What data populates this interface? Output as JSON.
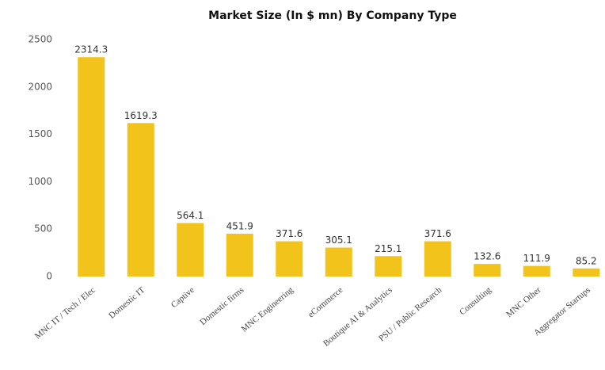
{
  "chart_data": {
    "type": "bar",
    "title": "Market Size (In $ mn) By Company Type",
    "categories": [
      "MNC IT / Tech / Elec",
      "Domestic IT",
      "Captive",
      "Domestic firms",
      "MNC Engineering",
      "eCommerce",
      "Boutique AI & Analytics",
      "PSU / Public Research",
      "Consulting",
      "MNC Other",
      "Aggregator Startups"
    ],
    "values": [
      2314.3,
      1619.3,
      564.1,
      451.9,
      371.6,
      305.1,
      215.1,
      371.6,
      132.6,
      111.9,
      85.2
    ],
    "color": "#f2c31b",
    "ylim": [
      0,
      2500
    ],
    "yticks": [
      0,
      500,
      1000,
      1500,
      2000,
      2500
    ],
    "grid": false
  }
}
